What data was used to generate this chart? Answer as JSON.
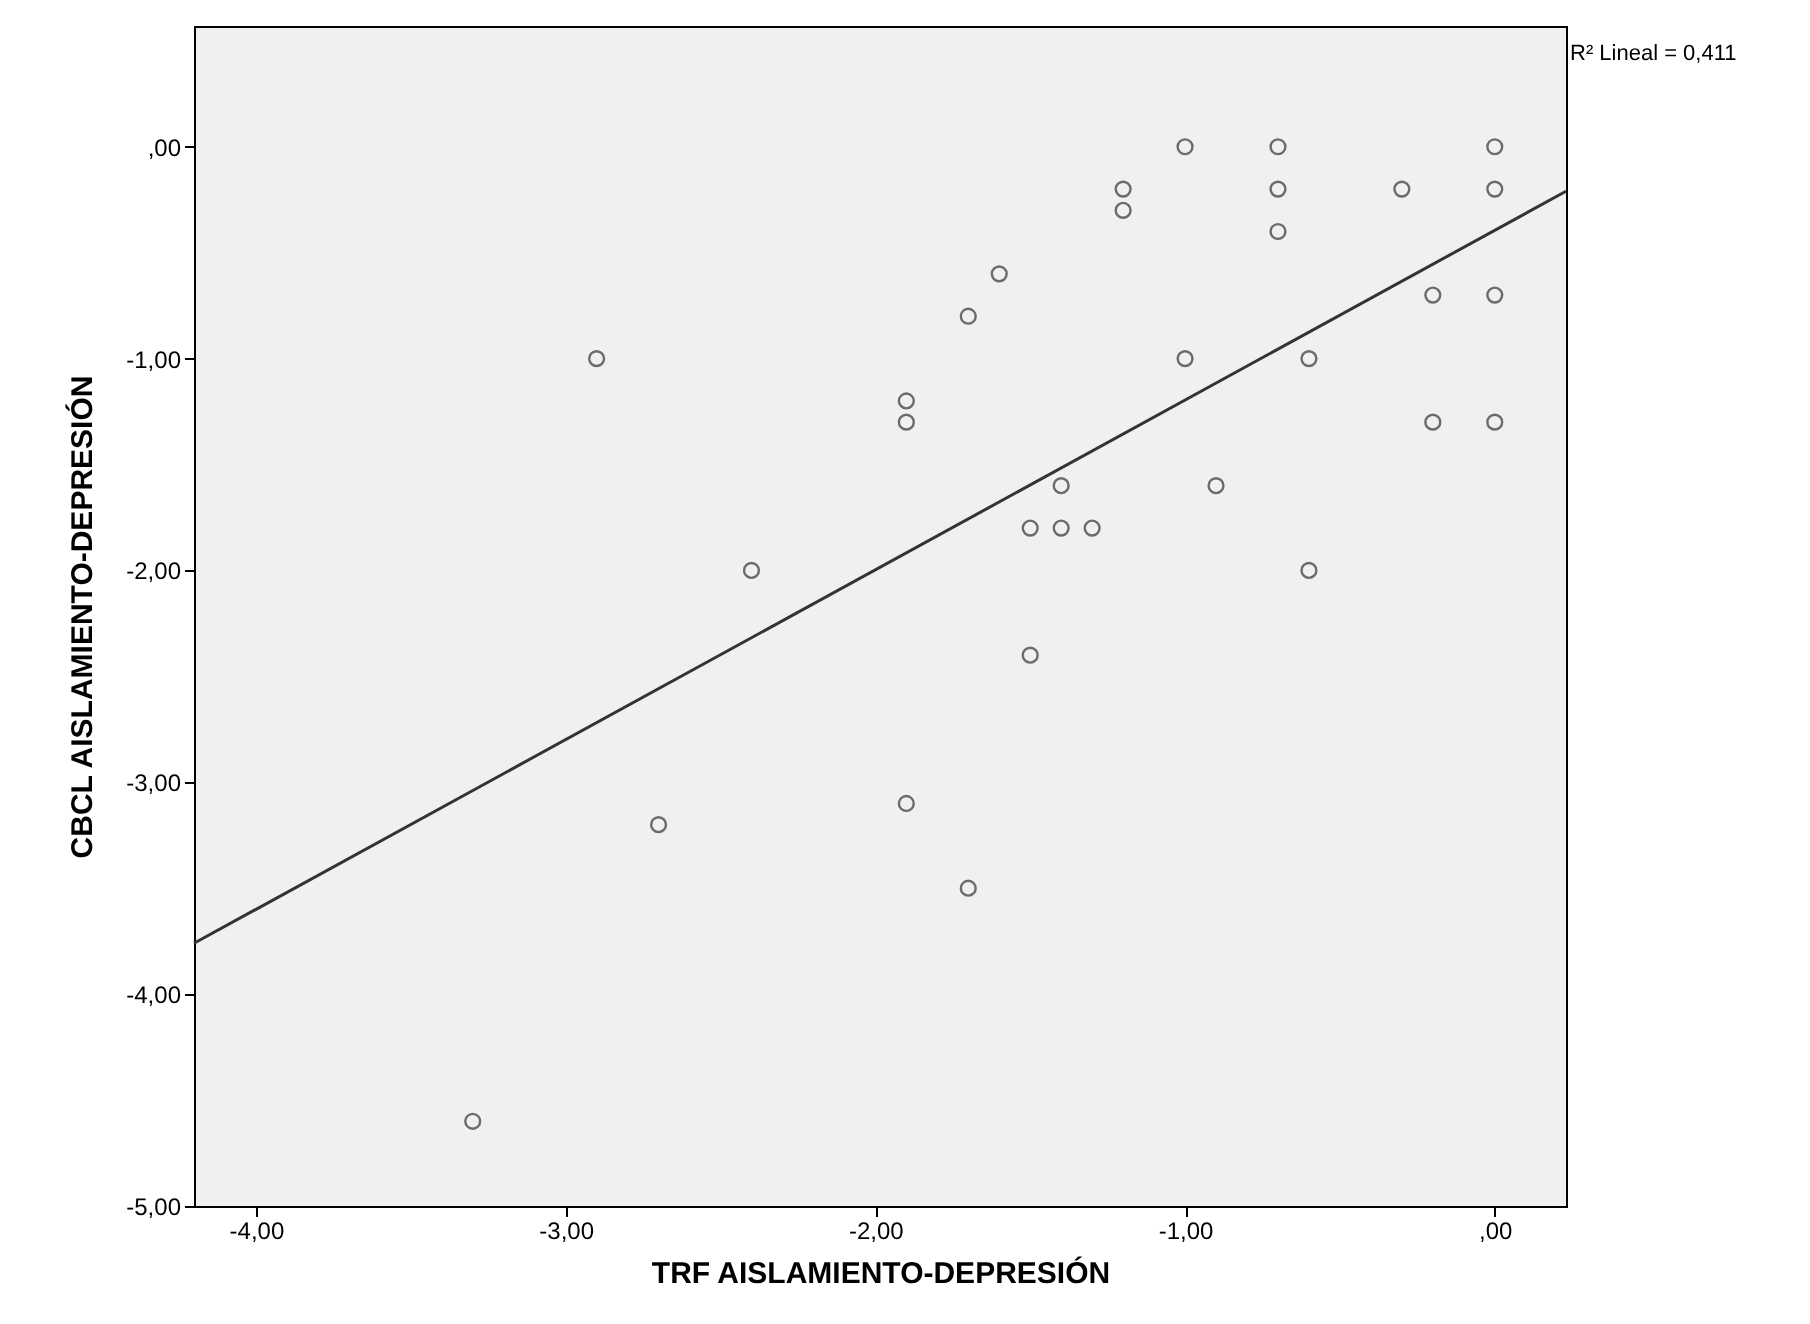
{
  "chart_data": {
    "type": "scatter",
    "xlabel": "TRF AISLAMIENTO-DEPRESIÓN",
    "ylabel": "CBCL AISLAMIENTO-DEPRESIÓN",
    "annotations": [
      "R² Lineal = 0,411"
    ],
    "xlim": [
      -4.2,
      0.23
    ],
    "ylim": [
      -5,
      0.57
    ],
    "xticks": [
      {
        "value": -4,
        "label": "-4,00"
      },
      {
        "value": -3,
        "label": "-3,00"
      },
      {
        "value": -2,
        "label": "-2,00"
      },
      {
        "value": -1,
        "label": "-1,00"
      },
      {
        "value": 0,
        "label": ",00"
      }
    ],
    "yticks": [
      {
        "value": -5,
        "label": "-5,00"
      },
      {
        "value": -4,
        "label": "-4,00"
      },
      {
        "value": -3,
        "label": "-3,00"
      },
      {
        "value": -2,
        "label": "-2,00"
      },
      {
        "value": -1,
        "label": "-1,00"
      },
      {
        "value": 0,
        "label": ",00"
      }
    ],
    "grid": false,
    "series": [
      {
        "type": "scatter",
        "marker": "circle",
        "color": "#333333",
        "x": [
          0,
          0,
          0,
          0,
          -0.2,
          -0.2,
          -0.3,
          -0.6,
          -0.6,
          -0.7,
          -0.7,
          -0.7,
          -0.9,
          -1.0,
          -1.0,
          -1.2,
          -1.2,
          -1.3,
          -1.4,
          -1.4,
          -1.5,
          -1.5,
          -1.6,
          -1.7,
          -1.7,
          -1.9,
          -1.9,
          -1.9,
          -2.4,
          -2.7,
          -2.9,
          -3.3
        ],
        "values": [
          0,
          -0.2,
          -0.7,
          -1.3,
          -0.7,
          -1.3,
          -0.2,
          -1.0,
          -2.0,
          0,
          -0.2,
          -0.4,
          -1.6,
          0,
          -1.0,
          -0.2,
          -0.3,
          -1.8,
          -1.6,
          -1.8,
          -1.8,
          -2.4,
          -0.6,
          -0.8,
          -3.5,
          -1.2,
          -1.3,
          -3.1,
          -2.0,
          -3.2,
          -1.0,
          -4.6
        ]
      },
      {
        "type": "line",
        "marker": "none",
        "line_style": "solid",
        "color": "#333333",
        "x": [
          -4.2,
          0.23
        ],
        "values": [
          -3.76,
          -0.21
        ]
      }
    ]
  }
}
